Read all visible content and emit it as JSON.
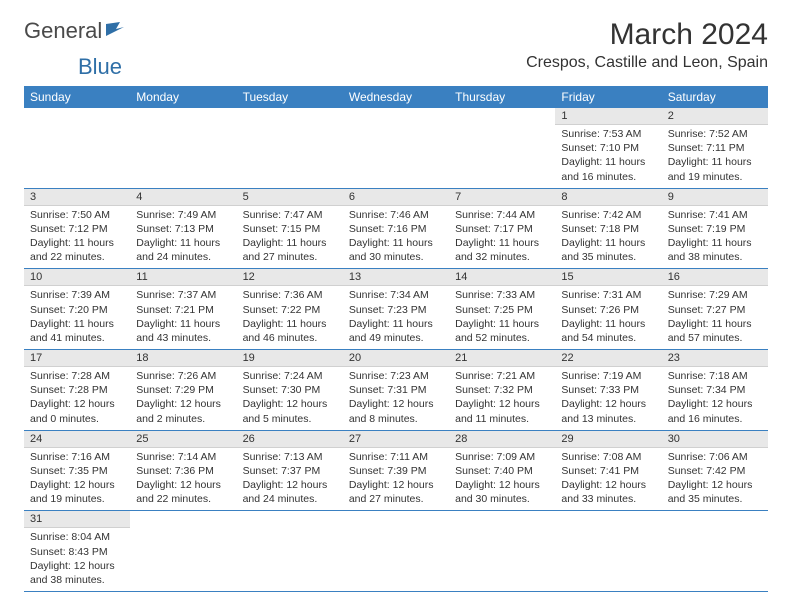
{
  "brand": {
    "name1": "General",
    "name2": "Blue"
  },
  "title": "March 2024",
  "location": "Crespos, Castille and Leon, Spain",
  "colors": {
    "header_bg": "#3a80c1",
    "header_fg": "#ffffff",
    "daynum_bg": "#e8e8e8",
    "rule": "#3a80c1",
    "logo_blue": "#2f6fa7"
  },
  "weekdays": [
    "Sunday",
    "Monday",
    "Tuesday",
    "Wednesday",
    "Thursday",
    "Friday",
    "Saturday"
  ],
  "weeks": [
    [
      null,
      null,
      null,
      null,
      null,
      {
        "n": "1",
        "sr": "7:53 AM",
        "ss": "7:10 PM",
        "dl": "11 hours and 16 minutes."
      },
      {
        "n": "2",
        "sr": "7:52 AM",
        "ss": "7:11 PM",
        "dl": "11 hours and 19 minutes."
      }
    ],
    [
      {
        "n": "3",
        "sr": "7:50 AM",
        "ss": "7:12 PM",
        "dl": "11 hours and 22 minutes."
      },
      {
        "n": "4",
        "sr": "7:49 AM",
        "ss": "7:13 PM",
        "dl": "11 hours and 24 minutes."
      },
      {
        "n": "5",
        "sr": "7:47 AM",
        "ss": "7:15 PM",
        "dl": "11 hours and 27 minutes."
      },
      {
        "n": "6",
        "sr": "7:46 AM",
        "ss": "7:16 PM",
        "dl": "11 hours and 30 minutes."
      },
      {
        "n": "7",
        "sr": "7:44 AM",
        "ss": "7:17 PM",
        "dl": "11 hours and 32 minutes."
      },
      {
        "n": "8",
        "sr": "7:42 AM",
        "ss": "7:18 PM",
        "dl": "11 hours and 35 minutes."
      },
      {
        "n": "9",
        "sr": "7:41 AM",
        "ss": "7:19 PM",
        "dl": "11 hours and 38 minutes."
      }
    ],
    [
      {
        "n": "10",
        "sr": "7:39 AM",
        "ss": "7:20 PM",
        "dl": "11 hours and 41 minutes."
      },
      {
        "n": "11",
        "sr": "7:37 AM",
        "ss": "7:21 PM",
        "dl": "11 hours and 43 minutes."
      },
      {
        "n": "12",
        "sr": "7:36 AM",
        "ss": "7:22 PM",
        "dl": "11 hours and 46 minutes."
      },
      {
        "n": "13",
        "sr": "7:34 AM",
        "ss": "7:23 PM",
        "dl": "11 hours and 49 minutes."
      },
      {
        "n": "14",
        "sr": "7:33 AM",
        "ss": "7:25 PM",
        "dl": "11 hours and 52 minutes."
      },
      {
        "n": "15",
        "sr": "7:31 AM",
        "ss": "7:26 PM",
        "dl": "11 hours and 54 minutes."
      },
      {
        "n": "16",
        "sr": "7:29 AM",
        "ss": "7:27 PM",
        "dl": "11 hours and 57 minutes."
      }
    ],
    [
      {
        "n": "17",
        "sr": "7:28 AM",
        "ss": "7:28 PM",
        "dl": "12 hours and 0 minutes."
      },
      {
        "n": "18",
        "sr": "7:26 AM",
        "ss": "7:29 PM",
        "dl": "12 hours and 2 minutes."
      },
      {
        "n": "19",
        "sr": "7:24 AM",
        "ss": "7:30 PM",
        "dl": "12 hours and 5 minutes."
      },
      {
        "n": "20",
        "sr": "7:23 AM",
        "ss": "7:31 PM",
        "dl": "12 hours and 8 minutes."
      },
      {
        "n": "21",
        "sr": "7:21 AM",
        "ss": "7:32 PM",
        "dl": "12 hours and 11 minutes."
      },
      {
        "n": "22",
        "sr": "7:19 AM",
        "ss": "7:33 PM",
        "dl": "12 hours and 13 minutes."
      },
      {
        "n": "23",
        "sr": "7:18 AM",
        "ss": "7:34 PM",
        "dl": "12 hours and 16 minutes."
      }
    ],
    [
      {
        "n": "24",
        "sr": "7:16 AM",
        "ss": "7:35 PM",
        "dl": "12 hours and 19 minutes."
      },
      {
        "n": "25",
        "sr": "7:14 AM",
        "ss": "7:36 PM",
        "dl": "12 hours and 22 minutes."
      },
      {
        "n": "26",
        "sr": "7:13 AM",
        "ss": "7:37 PM",
        "dl": "12 hours and 24 minutes."
      },
      {
        "n": "27",
        "sr": "7:11 AM",
        "ss": "7:39 PM",
        "dl": "12 hours and 27 minutes."
      },
      {
        "n": "28",
        "sr": "7:09 AM",
        "ss": "7:40 PM",
        "dl": "12 hours and 30 minutes."
      },
      {
        "n": "29",
        "sr": "7:08 AM",
        "ss": "7:41 PM",
        "dl": "12 hours and 33 minutes."
      },
      {
        "n": "30",
        "sr": "7:06 AM",
        "ss": "7:42 PM",
        "dl": "12 hours and 35 minutes."
      }
    ],
    [
      {
        "n": "31",
        "sr": "8:04 AM",
        "ss": "8:43 PM",
        "dl": "12 hours and 38 minutes."
      },
      null,
      null,
      null,
      null,
      null,
      null
    ]
  ],
  "labels": {
    "sunrise": "Sunrise:",
    "sunset": "Sunset:",
    "daylight": "Daylight:"
  }
}
